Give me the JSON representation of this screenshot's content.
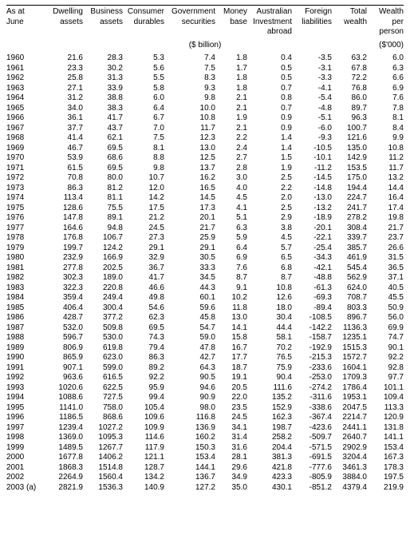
{
  "table": {
    "unit_left": "($ billion)",
    "unit_right": "($'000)",
    "headers": {
      "year": "As at\nJune",
      "dwell": "Dwelling\nassets",
      "bus": "Business\nassets",
      "cons": "Consumer\ndurables",
      "gov": "Government\nsecurities",
      "money": "Money\nbase",
      "aus": "Australian\nInvestment\nabroad",
      "for": "Foreign\nliabilities",
      "totw": "Total\nwealth",
      "wpp": "Wealth\nper\nperson"
    },
    "rows": [
      {
        "year": "1960",
        "dwell": "21.6",
        "bus": "28.3",
        "cons": "5.3",
        "gov": "7.4",
        "money": "1.8",
        "aus": "0.4",
        "for": "-3.5",
        "totw": "63.2",
        "wpp": "6.0"
      },
      {
        "year": "1961",
        "dwell": "23.3",
        "bus": "30.2",
        "cons": "5.6",
        "gov": "7.5",
        "money": "1.7",
        "aus": "0.5",
        "for": "-3.1",
        "totw": "67.8",
        "wpp": "6.3"
      },
      {
        "year": "1962",
        "dwell": "25.8",
        "bus": "31.3",
        "cons": "5.5",
        "gov": "8.3",
        "money": "1.8",
        "aus": "0.5",
        "for": "-3.3",
        "totw": "72.2",
        "wpp": "6.6"
      },
      {
        "year": "1963",
        "dwell": "27.1",
        "bus": "33.9",
        "cons": "5.8",
        "gov": "9.3",
        "money": "1.8",
        "aus": "0.7",
        "for": "-4.1",
        "totw": "76.8",
        "wpp": "6.9"
      },
      {
        "year": "1964",
        "dwell": "31.2",
        "bus": "38.8",
        "cons": "6.0",
        "gov": "9.8",
        "money": "2.1",
        "aus": "0.8",
        "for": "-5.4",
        "totw": "86.0",
        "wpp": "7.6"
      },
      {
        "year": "1965",
        "dwell": "34.0",
        "bus": "38.3",
        "cons": "6.4",
        "gov": "10.0",
        "money": "2.1",
        "aus": "0.7",
        "for": "-4.8",
        "totw": "89.7",
        "wpp": "7.8"
      },
      {
        "year": "1966",
        "dwell": "36.1",
        "bus": "41.7",
        "cons": "6.7",
        "gov": "10.8",
        "money": "1.9",
        "aus": "0.9",
        "for": "-5.1",
        "totw": "96.3",
        "wpp": "8.1"
      },
      {
        "year": "1967",
        "dwell": "37.7",
        "bus": "43.7",
        "cons": "7.0",
        "gov": "11.7",
        "money": "2.1",
        "aus": "0.9",
        "for": "-6.0",
        "totw": "100.7",
        "wpp": "8.4"
      },
      {
        "year": "1968",
        "dwell": "41.4",
        "bus": "62.1",
        "cons": "7.5",
        "gov": "12.3",
        "money": "2.2",
        "aus": "1.4",
        "for": "-9.3",
        "totw": "121.6",
        "wpp": "9.9"
      },
      {
        "year": "1969",
        "dwell": "46.7",
        "bus": "69.5",
        "cons": "8.1",
        "gov": "13.0",
        "money": "2.4",
        "aus": "1.4",
        "for": "-10.5",
        "totw": "135.0",
        "wpp": "10.8"
      },
      {
        "year": "1970",
        "dwell": "53.9",
        "bus": "68.6",
        "cons": "8.8",
        "gov": "12.5",
        "money": "2.7",
        "aus": "1.5",
        "for": "-10.1",
        "totw": "142.9",
        "wpp": "11.2"
      },
      {
        "year": "1971",
        "dwell": "61.5",
        "bus": "69.5",
        "cons": "9.8",
        "gov": "13.7",
        "money": "2.8",
        "aus": "1.9",
        "for": "-11.2",
        "totw": "153.5",
        "wpp": "11.7"
      },
      {
        "year": "1972",
        "dwell": "70.8",
        "bus": "80.0",
        "cons": "10.7",
        "gov": "16.2",
        "money": "3.0",
        "aus": "2.5",
        "for": "-14.5",
        "totw": "175.0",
        "wpp": "13.2"
      },
      {
        "year": "1973",
        "dwell": "86.3",
        "bus": "81.2",
        "cons": "12.0",
        "gov": "16.5",
        "money": "4.0",
        "aus": "2.2",
        "for": "-14.8",
        "totw": "194.4",
        "wpp": "14.4"
      },
      {
        "year": "1974",
        "dwell": "113.4",
        "bus": "81.1",
        "cons": "14.2",
        "gov": "14.5",
        "money": "4.5",
        "aus": "2.0",
        "for": "-13.0",
        "totw": "224.7",
        "wpp": "16.4"
      },
      {
        "year": "1975",
        "dwell": "128.6",
        "bus": "75.5",
        "cons": "17.5",
        "gov": "17.3",
        "money": "4.1",
        "aus": "2.5",
        "for": "-13.2",
        "totw": "241.7",
        "wpp": "17.4"
      },
      {
        "year": "1976",
        "dwell": "147.8",
        "bus": "89.1",
        "cons": "21.2",
        "gov": "20.1",
        "money": "5.1",
        "aus": "2.9",
        "for": "-18.9",
        "totw": "278.2",
        "wpp": "19.8"
      },
      {
        "year": "1977",
        "dwell": "164.6",
        "bus": "94.8",
        "cons": "24.5",
        "gov": "21.7",
        "money": "6.3",
        "aus": "3.8",
        "for": "-20.1",
        "totw": "308.4",
        "wpp": "21.7"
      },
      {
        "year": "1978",
        "dwell": "176.8",
        "bus": "106.7",
        "cons": "27.3",
        "gov": "25.9",
        "money": "5.9",
        "aus": "4.5",
        "for": "-22.1",
        "totw": "339.7",
        "wpp": "23.7"
      },
      {
        "year": "1979",
        "dwell": "199.7",
        "bus": "124.2",
        "cons": "29.1",
        "gov": "29.1",
        "money": "6.4",
        "aus": "5.7",
        "for": "-25.4",
        "totw": "385.7",
        "wpp": "26.6"
      },
      {
        "year": "1980",
        "dwell": "232.9",
        "bus": "166.9",
        "cons": "32.9",
        "gov": "30.5",
        "money": "6.9",
        "aus": "6.5",
        "for": "-34.3",
        "totw": "461.9",
        "wpp": "31.5"
      },
      {
        "year": "1981",
        "dwell": "277.8",
        "bus": "202.5",
        "cons": "36.7",
        "gov": "33.3",
        "money": "7.6",
        "aus": "6.8",
        "for": "-42.1",
        "totw": "545.4",
        "wpp": "36.5"
      },
      {
        "year": "1982",
        "dwell": "302.3",
        "bus": "189.0",
        "cons": "41.7",
        "gov": "34.5",
        "money": "8.7",
        "aus": "8.7",
        "for": "-48.8",
        "totw": "562.9",
        "wpp": "37.1"
      },
      {
        "year": "1983",
        "dwell": "322.3",
        "bus": "220.8",
        "cons": "46.6",
        "gov": "44.3",
        "money": "9.1",
        "aus": "10.8",
        "for": "-61.3",
        "totw": "624.0",
        "wpp": "40.5"
      },
      {
        "year": "1984",
        "dwell": "359.4",
        "bus": "249.4",
        "cons": "49.8",
        "gov": "60.1",
        "money": "10.2",
        "aus": "12.6",
        "for": "-69.3",
        "totw": "708.7",
        "wpp": "45.5"
      },
      {
        "year": "1985",
        "dwell": "406.4",
        "bus": "300.4",
        "cons": "54.6",
        "gov": "59.6",
        "money": "11.8",
        "aus": "18.0",
        "for": "-89.4",
        "totw": "803.3",
        "wpp": "50.9"
      },
      {
        "year": "1986",
        "dwell": "428.7",
        "bus": "377.2",
        "cons": "62.3",
        "gov": "45.8",
        "money": "13.0",
        "aus": "30.4",
        "for": "-108.5",
        "totw": "896.7",
        "wpp": "56.0"
      },
      {
        "year": "1987",
        "dwell": "532.0",
        "bus": "509.8",
        "cons": "69.5",
        "gov": "54.7",
        "money": "14.1",
        "aus": "44.4",
        "for": "-142.2",
        "totw": "1136.3",
        "wpp": "69.9"
      },
      {
        "year": "1988",
        "dwell": "596.7",
        "bus": "530.0",
        "cons": "74.3",
        "gov": "59.0",
        "money": "15.8",
        "aus": "58.1",
        "for": "-158.7",
        "totw": "1235.1",
        "wpp": "74.7"
      },
      {
        "year": "1989",
        "dwell": "806.9",
        "bus": "619.8",
        "cons": "79.4",
        "gov": "47.8",
        "money": "16.7",
        "aus": "70.2",
        "for": "-192.9",
        "totw": "1515.3",
        "wpp": "90.1"
      },
      {
        "year": "1990",
        "dwell": "865.9",
        "bus": "623.0",
        "cons": "86.3",
        "gov": "42.7",
        "money": "17.7",
        "aus": "76.5",
        "for": "-215.3",
        "totw": "1572.7",
        "wpp": "92.2"
      },
      {
        "year": "1991",
        "dwell": "907.1",
        "bus": "599.0",
        "cons": "89.2",
        "gov": "64.3",
        "money": "18.7",
        "aus": "75.9",
        "for": "-233.6",
        "totw": "1604.1",
        "wpp": "92.8"
      },
      {
        "year": "1992",
        "dwell": "963.6",
        "bus": "616.5",
        "cons": "92.2",
        "gov": "90.5",
        "money": "19.1",
        "aus": "90.4",
        "for": "-253.0",
        "totw": "1709.3",
        "wpp": "97.7"
      },
      {
        "year": "1993",
        "dwell": "1020.6",
        "bus": "622.5",
        "cons": "95.9",
        "gov": "94.6",
        "money": "20.5",
        "aus": "111.6",
        "for": "-274.2",
        "totw": "1786.4",
        "wpp": "101.1"
      },
      {
        "year": "1994",
        "dwell": "1088.6",
        "bus": "727.5",
        "cons": "99.4",
        "gov": "90.9",
        "money": "22.0",
        "aus": "135.2",
        "for": "-311.6",
        "totw": "1953.1",
        "wpp": "109.4"
      },
      {
        "year": "1995",
        "dwell": "1141.0",
        "bus": "758.0",
        "cons": "105.4",
        "gov": "98.0",
        "money": "23.5",
        "aus": "152.9",
        "for": "-338.6",
        "totw": "2047.5",
        "wpp": "113.3"
      },
      {
        "year": "1996",
        "dwell": "1186.5",
        "bus": "868.6",
        "cons": "109.6",
        "gov": "116.8",
        "money": "24.5",
        "aus": "162.3",
        "for": "-367.4",
        "totw": "2214.7",
        "wpp": "120.9"
      },
      {
        "year": "1997",
        "dwell": "1239.4",
        "bus": "1027.2",
        "cons": "109.9",
        "gov": "136.9",
        "money": "34.1",
        "aus": "198.7",
        "for": "-423.6",
        "totw": "2441.1",
        "wpp": "131.8"
      },
      {
        "year": "1998",
        "dwell": "1369.0",
        "bus": "1095.3",
        "cons": "114.6",
        "gov": "160.2",
        "money": "31.4",
        "aus": "258.2",
        "for": "-509.7",
        "totw": "2640.7",
        "wpp": "141.1"
      },
      {
        "year": "1999",
        "dwell": "1489.5",
        "bus": "1267.7",
        "cons": "117.9",
        "gov": "150.3",
        "money": "31.6",
        "aus": "204.4",
        "for": "-571.5",
        "totw": "2902.9",
        "wpp": "153.4"
      },
      {
        "year": "2000",
        "dwell": "1677.8",
        "bus": "1406.2",
        "cons": "121.1",
        "gov": "153.4",
        "money": "28.1",
        "aus": "381.3",
        "for": "-691.5",
        "totw": "3204.4",
        "wpp": "167.3"
      },
      {
        "year": "2001",
        "dwell": "1868.3",
        "bus": "1514.8",
        "cons": "128.7",
        "gov": "144.1",
        "money": "29.6",
        "aus": "421.8",
        "for": "-777.6",
        "totw": "3461.3",
        "wpp": "178.3"
      },
      {
        "year": "2002",
        "dwell": "2264.9",
        "bus": "1560.4",
        "cons": "134.2",
        "gov": "136.7",
        "money": "34.9",
        "aus": "423.3",
        "for": "-805.9",
        "totw": "3884.0",
        "wpp": "197.5"
      },
      {
        "year": "2003 (a)",
        "dwell": "2821.9",
        "bus": "1536.3",
        "cons": "140.9",
        "gov": "127.2",
        "money": "35.0",
        "aus": "430.1",
        "for": "-851.2",
        "totw": "4379.4",
        "wpp": "219.9"
      }
    ]
  }
}
